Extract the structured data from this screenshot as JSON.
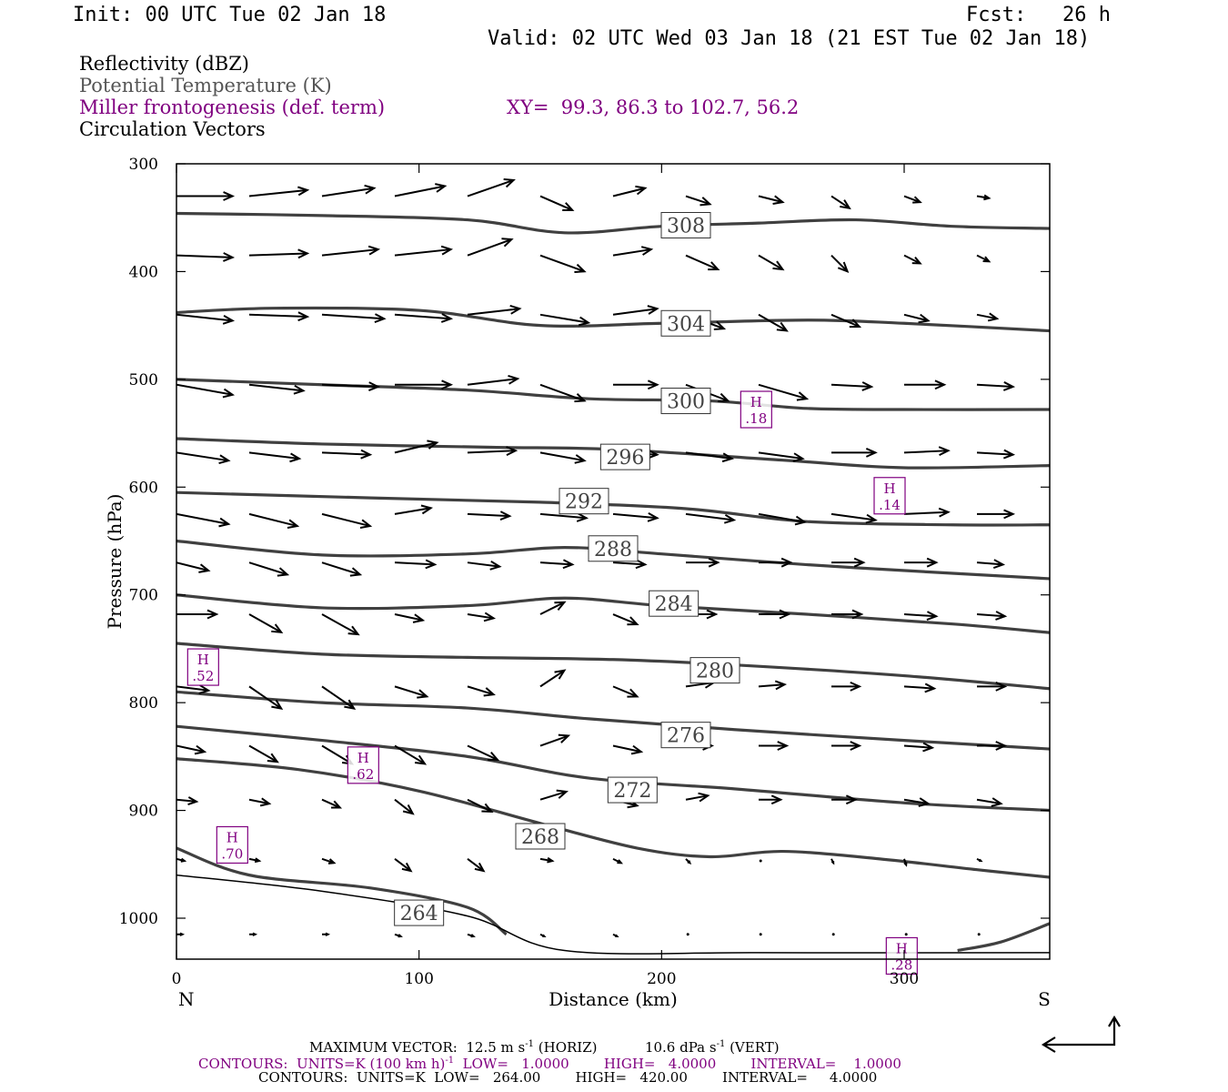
{
  "header": {
    "init": "Init: 00 UTC Tue 02 Jan 18",
    "fcst": "Fcst:   26 h",
    "valid": "Valid: 02 UTC Wed 03 Jan 18 (21 EST Tue 02 Jan 18)"
  },
  "legend": {
    "reflectivity": "Reflectivity (dBZ)",
    "theta": "Potential Temperature (K)",
    "frontogenesis": "Miller frontogenesis (def. term)",
    "xy": "XY=  99.3, 86.3 to 102.7, 56.2",
    "vectors": "Circulation Vectors"
  },
  "colors": {
    "contour": "#404040",
    "frontogenesis": "#800080",
    "vector": "#000000"
  },
  "footer": {
    "max_vector_label": "MAXIMUM VECTOR:",
    "max_vector_horiz": "12.5 m s",
    "horiz_exp": "-1",
    "horiz_suffix": " (HORIZ)",
    "max_vector_vert": "10.6 dPa s",
    "vert_exp": "-1",
    "vert_suffix": " (VERT)",
    "contours_fronto_a": "CONTOURS:  UNITS=K (100 km h)",
    "contours_fronto_exp": "-1",
    "contours_fronto_b": "  LOW=   1.0000        HIGH=   4.0000        INTERVAL=    1.0000",
    "contours_theta": "CONTOURS:  UNITS=K  LOW=   264.00        HIGH=   420.00        INTERVAL=     4.0000"
  },
  "chart_data": {
    "type": "line",
    "xlabel": "Distance (km)",
    "ylabel": "Pressure (hPa)",
    "xlim": [
      0,
      360
    ],
    "ylim": [
      1038,
      300
    ],
    "x_ticks": [
      "0",
      "100",
      "200",
      "300"
    ],
    "y_ticks": [
      "300",
      "400",
      "500",
      "600",
      "700",
      "800",
      "900",
      "1000"
    ],
    "x_tick_values": [
      0,
      100,
      200,
      300
    ],
    "y_tick_values": [
      300,
      400,
      500,
      600,
      700,
      800,
      900,
      1000
    ],
    "left_end_label": "N",
    "right_end_label": "S",
    "isentropes": [
      {
        "name": "308",
        "label_at": [
          210,
          357
        ],
        "points": [
          [
            0,
            346
          ],
          [
            60,
            348
          ],
          [
            120,
            352
          ],
          [
            160,
            364
          ],
          [
            200,
            358
          ],
          [
            240,
            355
          ],
          [
            280,
            352
          ],
          [
            320,
            358
          ],
          [
            360,
            360
          ]
        ]
      },
      {
        "name": "304",
        "label_at": [
          210,
          448
        ],
        "points": [
          [
            0,
            438
          ],
          [
            40,
            434
          ],
          [
            100,
            436
          ],
          [
            150,
            450
          ],
          [
            200,
            448
          ],
          [
            260,
            445
          ],
          [
            300,
            448
          ],
          [
            360,
            455
          ]
        ]
      },
      {
        "name": "300",
        "label_at": [
          210,
          520
        ],
        "points": [
          [
            0,
            500
          ],
          [
            60,
            505
          ],
          [
            120,
            510
          ],
          [
            170,
            518
          ],
          [
            220,
            520
          ],
          [
            260,
            527
          ],
          [
            300,
            528
          ],
          [
            360,
            528
          ]
        ]
      },
      {
        "name": "296",
        "label_at": [
          185,
          572
        ],
        "points": [
          [
            0,
            555
          ],
          [
            60,
            560
          ],
          [
            130,
            563
          ],
          [
            180,
            565
          ],
          [
            250,
            575
          ],
          [
            300,
            582
          ],
          [
            360,
            580
          ]
        ]
      },
      {
        "name": "292",
        "label_at": [
          168,
          613
        ],
        "points": [
          [
            0,
            605
          ],
          [
            80,
            610
          ],
          [
            150,
            614
          ],
          [
            210,
            620
          ],
          [
            260,
            632
          ],
          [
            320,
            635
          ],
          [
            360,
            635
          ]
        ]
      },
      {
        "name": "288",
        "label_at": [
          180,
          657
        ],
        "points": [
          [
            0,
            650
          ],
          [
            60,
            663
          ],
          [
            120,
            662
          ],
          [
            160,
            656
          ],
          [
            200,
            662
          ],
          [
            260,
            672
          ],
          [
            320,
            680
          ],
          [
            360,
            685
          ]
        ]
      },
      {
        "name": "284",
        "label_at": [
          205,
          708
        ],
        "points": [
          [
            0,
            700
          ],
          [
            60,
            712
          ],
          [
            120,
            710
          ],
          [
            160,
            703
          ],
          [
            200,
            710
          ],
          [
            260,
            718
          ],
          [
            320,
            727
          ],
          [
            360,
            735
          ]
        ]
      },
      {
        "name": "280",
        "label_at": [
          222,
          770
        ],
        "points": [
          [
            0,
            745
          ],
          [
            60,
            755
          ],
          [
            120,
            758
          ],
          [
            180,
            760
          ],
          [
            230,
            765
          ],
          [
            300,
            775
          ],
          [
            360,
            787
          ]
        ]
      },
      {
        "name": "276",
        "label_at": [
          210,
          830
        ],
        "points": [
          [
            0,
            790
          ],
          [
            60,
            800
          ],
          [
            120,
            805
          ],
          [
            170,
            815
          ],
          [
            230,
            825
          ],
          [
            300,
            835
          ],
          [
            360,
            843
          ]
        ]
      },
      {
        "name": "272",
        "label_at": [
          188,
          881
        ],
        "points": [
          [
            0,
            822
          ],
          [
            60,
            835
          ],
          [
            120,
            850
          ],
          [
            170,
            870
          ],
          [
            230,
            880
          ],
          [
            300,
            893
          ],
          [
            360,
            900
          ]
        ]
      },
      {
        "name": "268",
        "label_at": [
          150,
          924
        ],
        "points": [
          [
            0,
            852
          ],
          [
            50,
            862
          ],
          [
            100,
            882
          ],
          [
            150,
            912
          ],
          [
            190,
            935
          ],
          [
            220,
            943
          ],
          [
            250,
            938
          ],
          [
            290,
            945
          ],
          [
            330,
            955
          ],
          [
            360,
            962
          ]
        ]
      },
      {
        "name": "264",
        "label_at": [
          100,
          995
        ],
        "points": [
          [
            0,
            935
          ],
          [
            30,
            960
          ],
          [
            80,
            972
          ],
          [
            120,
            990
          ],
          [
            136,
            1015
          ]
        ]
      },
      {
        "name": "264",
        "label_at": [
          0,
          0
        ],
        "points": [
          [
            322,
            1030
          ],
          [
            340,
            1022
          ],
          [
            360,
            1005
          ]
        ]
      }
    ],
    "frontogenesis_maxima": [
      {
        "label": "H",
        "value": ".18",
        "x": 239,
        "y": 528
      },
      {
        "label": "H",
        "value": ".14",
        "x": 294,
        "y": 608
      },
      {
        "label": "H",
        "value": ".52",
        "x": 11,
        "y": 767
      },
      {
        "label": "H",
        "value": ".62",
        "x": 77,
        "y": 858
      },
      {
        "label": "H",
        "value": ".70",
        "x": 23,
        "y": 932
      },
      {
        "label": "H",
        "value": ".28",
        "x": 299,
        "y": 1035
      }
    ],
    "vector_grid": {
      "x": [
        0,
        30,
        60,
        90,
        120,
        150,
        180,
        210,
        240,
        270,
        300,
        330
      ],
      "p": [
        330,
        385,
        440,
        505,
        568,
        625,
        670,
        718,
        785,
        840,
        890,
        945,
        1015
      ],
      "u": [
        [
          2.8,
          2.9,
          2.6,
          2.5,
          2.3,
          1.6,
          1.6,
          1.2,
          1.2,
          0.9,
          0.8,
          0.6
        ],
        [
          2.8,
          2.9,
          2.8,
          2.8,
          2.2,
          2.2,
          1.9,
          1.6,
          1.2,
          0.8,
          0.8,
          0.6
        ],
        [
          2.8,
          2.9,
          3.1,
          2.8,
          2.6,
          2.4,
          2.2,
          1.9,
          1.4,
          1.4,
          1.2,
          1.0
        ],
        [
          2.8,
          2.7,
          2.8,
          2.8,
          2.5,
          2.2,
          2.2,
          2.1,
          2.4,
          2.0,
          2.0,
          1.8
        ],
        [
          2.6,
          2.5,
          2.4,
          2.1,
          2.4,
          2.2,
          2.2,
          2.3,
          2.2,
          2.2,
          2.2,
          1.8
        ],
        [
          2.6,
          2.4,
          2.4,
          1.8,
          2.1,
          2.3,
          2.2,
          2.4,
          2.3,
          2.2,
          2.2,
          1.8
        ],
        [
          1.6,
          1.9,
          1.9,
          2.0,
          1.6,
          1.6,
          1.6,
          1.6,
          1.6,
          1.6,
          1.6,
          1.3
        ],
        [
          2.0,
          1.6,
          1.8,
          1.4,
          1.3,
          1.2,
          1.2,
          1.5,
          1.5,
          1.5,
          1.6,
          1.4
        ],
        [
          1.6,
          1.6,
          1.6,
          1.6,
          1.3,
          1.2,
          1.2,
          1.4,
          1.3,
          1.4,
          1.5,
          1.4
        ],
        [
          1.4,
          1.4,
          1.5,
          1.5,
          1.5,
          1.4,
          1.4,
          1.3,
          1.4,
          1.4,
          1.4,
          1.4
        ],
        [
          1.0,
          1.0,
          0.9,
          0.9,
          1.2,
          1.3,
          1.2,
          1.1,
          1.1,
          1.2,
          1.2,
          1.2
        ],
        [
          0.4,
          0.5,
          0.6,
          0.8,
          0.8,
          0.6,
          0.4,
          0.2,
          0.1,
          0.1,
          0.1,
          0.2
        ],
        [
          0.3,
          0.3,
          0.3,
          0.3,
          0.3,
          0.2,
          0.2,
          0.1,
          0.1,
          0.1,
          0.1,
          0.1
        ]
      ],
      "w": [
        [
          0.0,
          -0.3,
          -0.4,
          -0.5,
          -0.8,
          0.7,
          -0.4,
          0.4,
          0.3,
          0.6,
          0.3,
          0.1
        ],
        [
          0.1,
          -0.1,
          -0.3,
          -0.3,
          -0.8,
          0.8,
          -0.3,
          0.7,
          0.7,
          0.8,
          0.4,
          0.3
        ],
        [
          0.3,
          0.1,
          0.2,
          0.2,
          -0.3,
          0.4,
          -0.3,
          0.7,
          0.8,
          0.6,
          0.3,
          0.2
        ],
        [
          0.5,
          0.3,
          0.1,
          0.0,
          -0.3,
          0.8,
          0.0,
          0.8,
          0.7,
          0.1,
          0.0,
          0.1
        ],
        [
          0.4,
          0.3,
          0.1,
          -0.5,
          -0.1,
          0.4,
          0.1,
          0.3,
          0.3,
          0.0,
          -0.1,
          0.1
        ],
        [
          0.5,
          0.6,
          0.6,
          -0.3,
          0.1,
          0.2,
          0.2,
          0.3,
          0.4,
          0.3,
          -0.1,
          0.0
        ],
        [
          0.4,
          0.6,
          0.6,
          0.1,
          0.2,
          0.1,
          0.1,
          0.0,
          0.0,
          0.0,
          0.0,
          0.1
        ],
        [
          0.0,
          0.9,
          1.0,
          0.3,
          0.2,
          -0.6,
          0.5,
          0.0,
          0.0,
          0.0,
          0.1,
          0.1
        ],
        [
          0.2,
          1.1,
          1.1,
          0.5,
          0.4,
          -0.8,
          0.5,
          -0.2,
          -0.1,
          0.0,
          0.1,
          0.0
        ],
        [
          0.3,
          0.8,
          0.9,
          0.9,
          0.7,
          -0.5,
          0.3,
          0.0,
          0.0,
          0.0,
          0.1,
          0.0
        ],
        [
          0.1,
          0.2,
          0.4,
          0.7,
          0.6,
          -0.4,
          0.3,
          -0.2,
          0.0,
          0.0,
          0.2,
          0.2
        ],
        [
          0.1,
          0.1,
          0.2,
          0.6,
          0.6,
          0.1,
          0.2,
          0.2,
          0.1,
          0.2,
          0.3,
          0.1
        ],
        [
          0.0,
          0.0,
          0.0,
          0.1,
          0.1,
          0.1,
          0.1,
          0.0,
          0.0,
          0.0,
          0.0,
          0.0
        ]
      ]
    }
  }
}
